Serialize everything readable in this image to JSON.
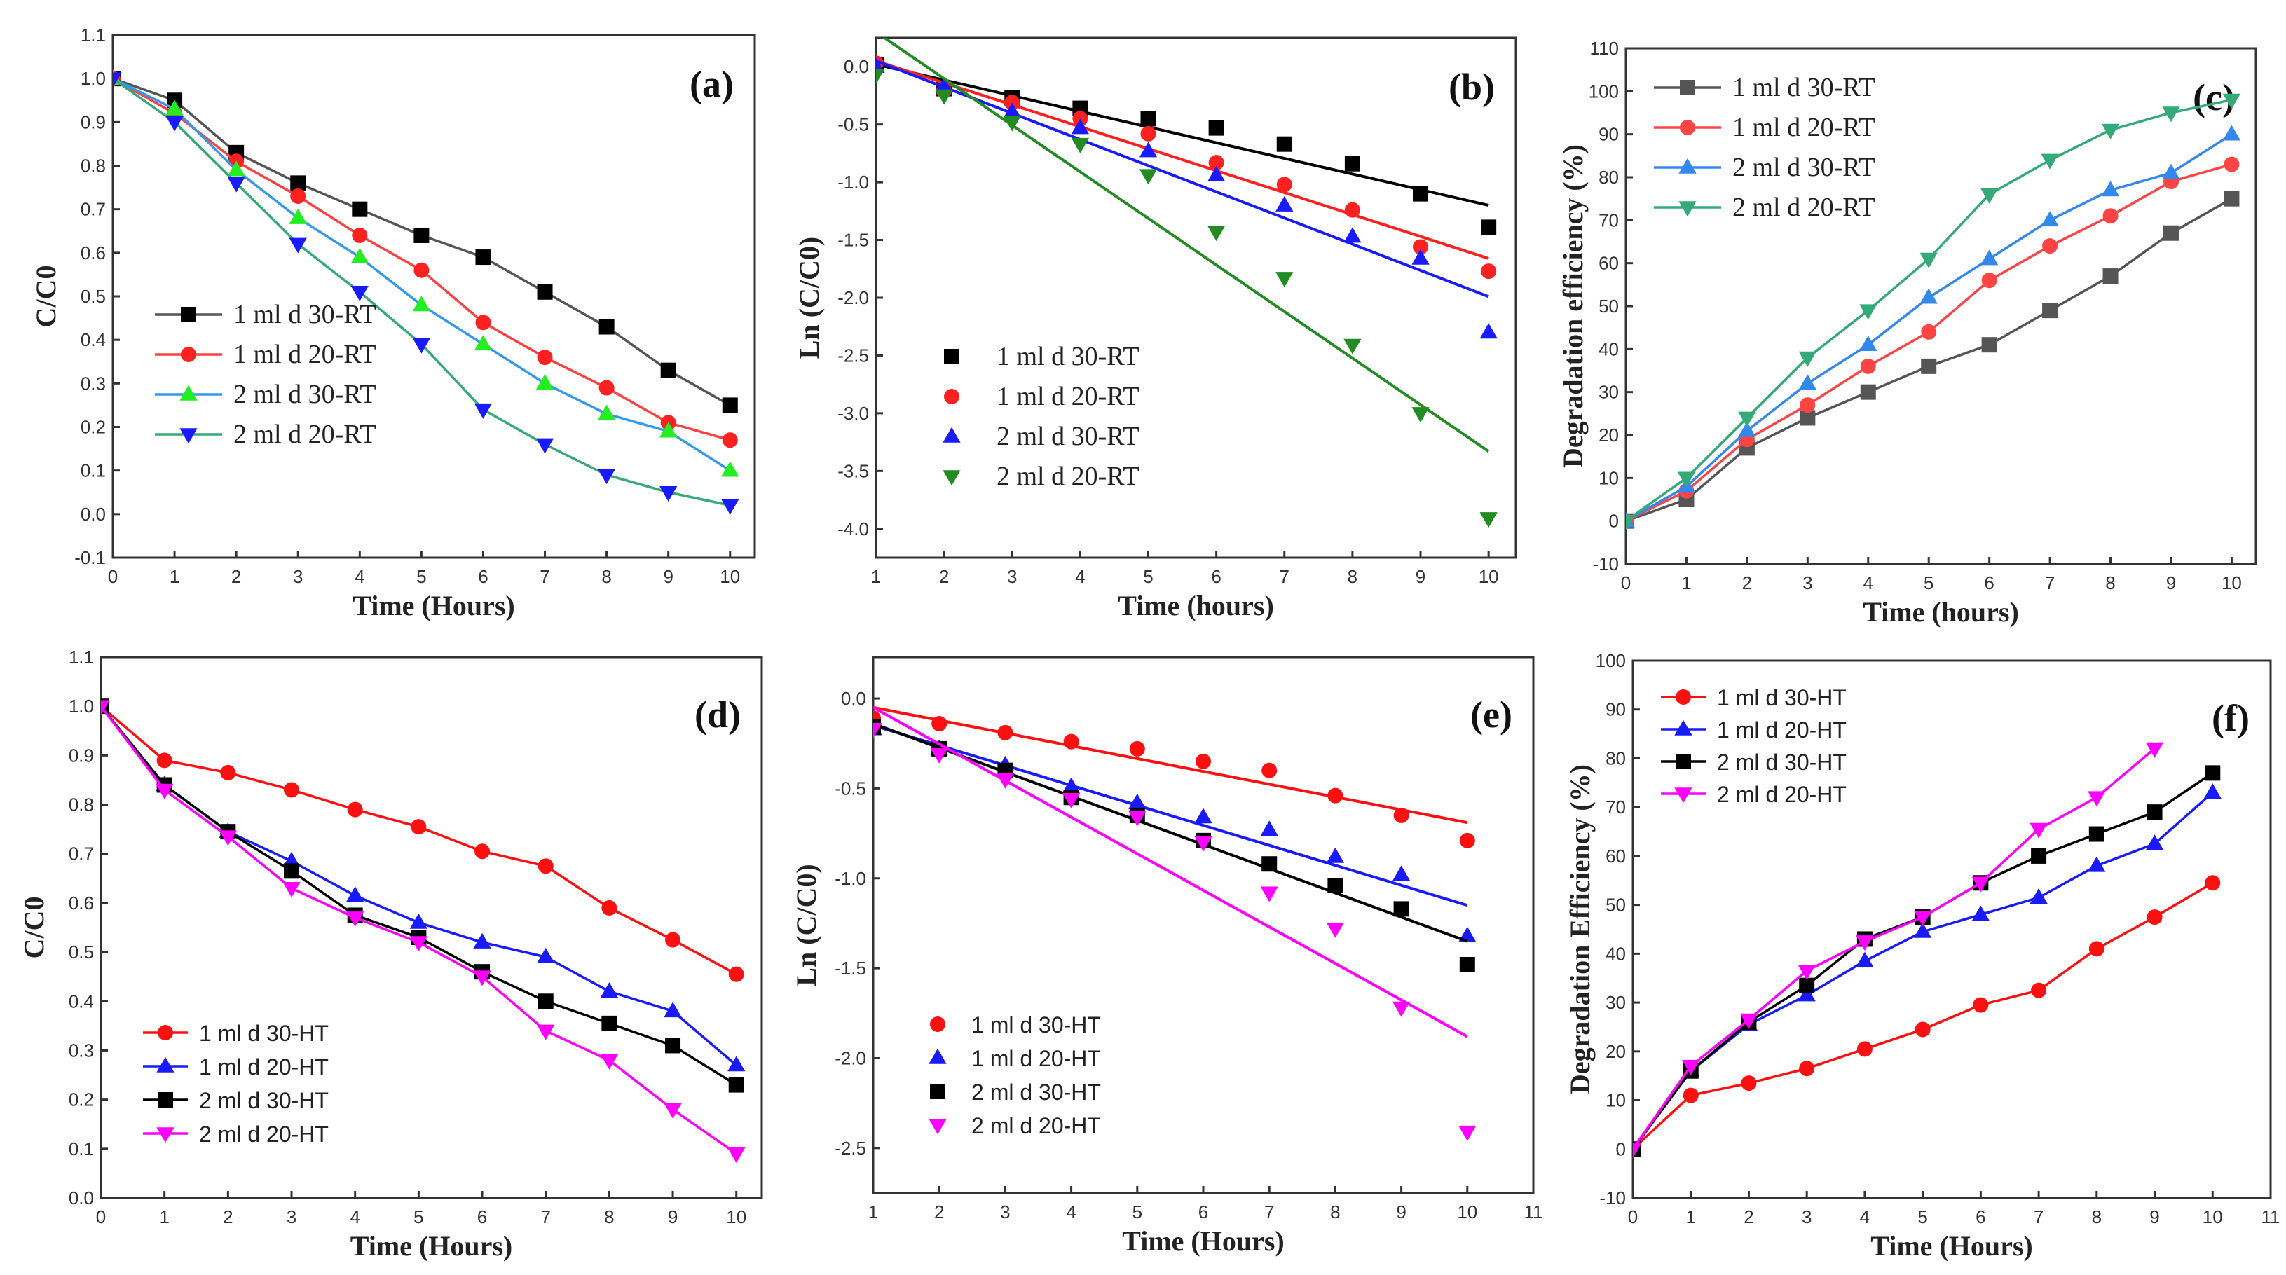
{
  "chart_data": [
    {
      "id": "a",
      "type": "line",
      "panel_label": "(a)",
      "xlabel": "Time (Hours)",
      "ylabel": "C/C0",
      "xlim": [
        0,
        10.4
      ],
      "ylim": [
        -0.1,
        1.1
      ],
      "xticks": [
        0,
        1,
        2,
        3,
        4,
        5,
        6,
        7,
        8,
        9,
        10
      ],
      "yticks": [
        -0.1,
        0.0,
        0.1,
        0.2,
        0.3,
        0.4,
        0.5,
        0.6,
        0.7,
        0.8,
        0.9,
        1.0,
        1.1
      ],
      "ydec": 1,
      "legend": "bottom-left",
      "x": [
        0,
        1,
        2,
        3,
        4,
        5,
        6,
        7,
        8,
        9,
        10
      ],
      "series": [
        {
          "name": "1 ml d 30-RT",
          "color": "#000000",
          "line": "#555555",
          "marker": "square",
          "values": [
            1,
            0.95,
            0.83,
            0.76,
            0.7,
            0.64,
            0.59,
            0.51,
            0.43,
            0.33,
            0.25
          ]
        },
        {
          "name": "1 ml d 20-RT",
          "color": "#ff2020",
          "line": "#ff4040",
          "marker": "circle",
          "values": [
            1,
            0.92,
            0.81,
            0.73,
            0.64,
            0.56,
            0.44,
            0.36,
            0.29,
            0.21,
            0.17
          ]
        },
        {
          "name": "2 ml d 30-RT",
          "color": "#22ee22",
          "line": "#3399ee",
          "marker": "triangle-up",
          "values": [
            1,
            0.93,
            0.79,
            0.68,
            0.59,
            0.48,
            0.39,
            0.3,
            0.23,
            0.19,
            0.1
          ]
        },
        {
          "name": "2 ml d 20-RT",
          "color": "#1a1aff",
          "line": "#33aa77",
          "marker": "triangle-down",
          "values": [
            1,
            0.9,
            0.76,
            0.62,
            0.51,
            0.39,
            0.24,
            0.16,
            0.09,
            0.05,
            0.02
          ]
        }
      ]
    },
    {
      "id": "b",
      "type": "scatter",
      "panel_label": "(b)",
      "xlabel": "Time (hours)",
      "ylabel": "Ln (C/C0)",
      "xlim": [
        1,
        10.4
      ],
      "ylim": [
        -4.25,
        0.25
      ],
      "xticks": [
        1,
        2,
        3,
        4,
        5,
        6,
        7,
        8,
        9,
        10
      ],
      "yticks": [
        0.0,
        -0.5,
        -1.0,
        -1.5,
        -2.0,
        -2.5,
        -3.0,
        -3.5,
        -4.0
      ],
      "ydec": 1,
      "legend": "bottom-left",
      "x": [
        1,
        2,
        3,
        4,
        5,
        6,
        7,
        8,
        9,
        10
      ],
      "series": [
        {
          "name": "1 ml d 30-RT",
          "color": "#000000",
          "line": "#000000",
          "marker": "square",
          "values": [
            0.02,
            -0.19,
            -0.27,
            -0.36,
            -0.45,
            -0.53,
            -0.67,
            -0.84,
            -1.1,
            -1.39
          ],
          "fit": [
            [
              1,
              0.02
            ],
            [
              10,
              -1.2
            ]
          ]
        },
        {
          "name": "1 ml d 20-RT",
          "color": "#ff2020",
          "line": "#ff2020",
          "marker": "circle",
          "values": [
            0.03,
            -0.21,
            -0.31,
            -0.45,
            -0.58,
            -0.83,
            -1.02,
            -1.24,
            -1.56,
            -1.77
          ],
          "fit": [
            [
              1,
              0.05
            ],
            [
              10,
              -1.66
            ]
          ]
        },
        {
          "name": "2 ml d 30-RT",
          "color": "#1a1aff",
          "line": "#1a1aff",
          "marker": "triangle-up",
          "values": [
            0.0,
            -0.17,
            -0.39,
            -0.53,
            -0.73,
            -0.94,
            -1.2,
            -1.47,
            -1.66,
            -2.3
          ],
          "fit": [
            [
              1,
              0.05
            ],
            [
              10,
              -1.99
            ]
          ]
        },
        {
          "name": "2 ml d 20-RT",
          "color": "#228b22",
          "line": "#228b22",
          "marker": "triangle-down",
          "values": [
            -0.07,
            -0.25,
            -0.48,
            -0.67,
            -0.94,
            -1.43,
            -1.83,
            -2.41,
            -3.0,
            -3.91
          ],
          "fit": [
            [
              1,
              0.3
            ],
            [
              10,
              -3.33
            ]
          ]
        }
      ]
    },
    {
      "id": "c",
      "type": "line",
      "panel_label": "(c)",
      "xlabel": "Time (hours)",
      "ylabel": "Degradation efficiency (%)",
      "xlim": [
        0,
        10.4
      ],
      "ylim": [
        -10,
        110
      ],
      "xticks": [
        0,
        1,
        2,
        3,
        4,
        5,
        6,
        7,
        8,
        9,
        10
      ],
      "yticks": [
        -10,
        0,
        10,
        20,
        30,
        40,
        50,
        60,
        70,
        80,
        90,
        100,
        110
      ],
      "ydec": 0,
      "legend": "top-left",
      "x": [
        0,
        1,
        2,
        3,
        4,
        5,
        6,
        7,
        8,
        9,
        10
      ],
      "series": [
        {
          "name": "1 ml d 30-RT",
          "color": "#555555",
          "line": "#555555",
          "marker": "square",
          "values": [
            0,
            5,
            17,
            24,
            30,
            36,
            41,
            49,
            57,
            67,
            75
          ]
        },
        {
          "name": "1 ml d 20-RT",
          "color": "#ff4444",
          "line": "#ff4444",
          "marker": "circle",
          "values": [
            0,
            7,
            19,
            27,
            36,
            44,
            56,
            64,
            71,
            79,
            83
          ]
        },
        {
          "name": "2 ml d 30-RT",
          "color": "#3388ee",
          "line": "#3388ee",
          "marker": "triangle-up",
          "values": [
            0,
            8,
            21,
            32,
            41,
            52,
            61,
            70,
            77,
            81,
            90
          ]
        },
        {
          "name": "2 ml d 20-RT",
          "color": "#33aa77",
          "line": "#33aa77",
          "marker": "triangle-down",
          "values": [
            0,
            10,
            24,
            38,
            49,
            61,
            76,
            84,
            91,
            95,
            98
          ]
        }
      ]
    },
    {
      "id": "d",
      "type": "line",
      "panel_label": "(d)",
      "xlabel": "Time (Hours)",
      "ylabel": "C/C0",
      "xlim": [
        0,
        10.4
      ],
      "ylim": [
        0,
        1.1
      ],
      "xticks": [
        0,
        1,
        2,
        3,
        4,
        5,
        6,
        7,
        8,
        9,
        10
      ],
      "yticks": [
        0.0,
        0.1,
        0.2,
        0.3,
        0.4,
        0.5,
        0.6,
        0.7,
        0.8,
        0.9,
        1.0,
        1.1
      ],
      "ydec": 1,
      "legend": "bottom-left",
      "x": [
        0,
        1,
        2,
        3,
        4,
        5,
        6,
        7,
        8,
        9,
        10
      ],
      "series": [
        {
          "name": "1 ml d 30-HT",
          "color": "#ff1010",
          "line": "#ff1010",
          "marker": "circle",
          "values": [
            1,
            0.89,
            0.865,
            0.83,
            0.79,
            0.755,
            0.705,
            0.675,
            0.59,
            0.525,
            0.455
          ]
        },
        {
          "name": "1 ml d 20-HT",
          "color": "#1a1aff",
          "line": "#1a1aff",
          "marker": "triangle-up",
          "values": [
            1,
            0.84,
            0.745,
            0.685,
            0.615,
            0.56,
            0.52,
            0.49,
            0.42,
            0.38,
            0.27
          ]
        },
        {
          "name": "2 ml d 30-HT",
          "color": "#000000",
          "line": "#000000",
          "marker": "square",
          "values": [
            1,
            0.84,
            0.745,
            0.665,
            0.575,
            0.53,
            0.46,
            0.4,
            0.355,
            0.31,
            0.23
          ]
        },
        {
          "name": "2 ml d 20-HT",
          "color": "#ff00ff",
          "line": "#ff00ff",
          "marker": "triangle-down",
          "values": [
            1,
            0.83,
            0.735,
            0.63,
            0.57,
            0.52,
            0.45,
            0.34,
            0.28,
            0.18,
            0.09
          ]
        }
      ]
    },
    {
      "id": "e",
      "type": "scatter",
      "panel_label": "(e)",
      "xlabel": "Time (Hours)",
      "ylabel": "Ln (C/C0)",
      "xlim": [
        1,
        11
      ],
      "ylim": [
        -2.75,
        0.23
      ],
      "xticks": [
        1,
        2,
        3,
        4,
        5,
        6,
        7,
        8,
        9,
        10,
        11
      ],
      "yticks": [
        0.0,
        -0.5,
        -1.0,
        -1.5,
        -2.0,
        -2.5
      ],
      "ydec": 1,
      "legend": "bottom-left",
      "x": [
        1,
        2,
        3,
        4,
        5,
        6,
        7,
        8,
        9,
        10
      ],
      "series": [
        {
          "name": "1 ml d 30-HT",
          "color": "#ff1010",
          "line": "#ff1010",
          "marker": "circle",
          "values": [
            -0.11,
            -0.14,
            -0.19,
            -0.24,
            -0.28,
            -0.35,
            -0.4,
            -0.54,
            -0.65,
            -0.79
          ],
          "fit": [
            [
              1,
              -0.05
            ],
            [
              10,
              -0.69
            ]
          ]
        },
        {
          "name": "1 ml d 20-HT",
          "color": "#1a1aff",
          "line": "#1a1aff",
          "marker": "triangle-up",
          "values": [
            -0.17,
            -0.28,
            -0.37,
            -0.49,
            -0.58,
            -0.66,
            -0.73,
            -0.88,
            -0.98,
            -1.32
          ],
          "fit": [
            [
              1,
              -0.15
            ],
            [
              10,
              -1.15
            ]
          ]
        },
        {
          "name": "2 ml d 30-HT",
          "color": "#000000",
          "line": "#000000",
          "marker": "square",
          "values": [
            -0.16,
            -0.28,
            -0.4,
            -0.55,
            -0.65,
            -0.79,
            -0.92,
            -1.04,
            -1.17,
            -1.48
          ],
          "fit": [
            [
              1,
              -0.14
            ],
            [
              10,
              -1.35
            ]
          ]
        },
        {
          "name": "2 ml d 20-HT",
          "color": "#ff00ff",
          "line": "#ff00ff",
          "marker": "triangle-down",
          "values": [
            -0.17,
            -0.31,
            -0.45,
            -0.56,
            -0.66,
            -0.8,
            -1.08,
            -1.28,
            -1.72,
            -2.41
          ],
          "fit": [
            [
              1,
              -0.05
            ],
            [
              10,
              -1.88
            ]
          ]
        }
      ]
    },
    {
      "id": "f",
      "type": "line",
      "panel_label": "(f)",
      "xlabel": "Time (Hours)",
      "ylabel": "Degradation Efficiency (%)",
      "xlim": [
        0,
        11
      ],
      "ylim": [
        -10,
        100
      ],
      "xticks": [
        0,
        1,
        2,
        3,
        4,
        5,
        6,
        7,
        8,
        9,
        10,
        11
      ],
      "yticks": [
        -10,
        0,
        10,
        20,
        30,
        40,
        50,
        60,
        70,
        80,
        90,
        100
      ],
      "ydec": 0,
      "legend": "top-left",
      "x": [
        0,
        1,
        2,
        3,
        4,
        5,
        6,
        7,
        8,
        9,
        10
      ],
      "series": [
        {
          "name": "1 ml d 30-HT",
          "color": "#ff1010",
          "line": "#ff1010",
          "marker": "circle",
          "values": [
            0,
            11,
            13.5,
            16.5,
            20.5,
            24.5,
            29.5,
            32.5,
            41,
            47.5,
            54.5
          ]
        },
        {
          "name": "1 ml d 20-HT",
          "color": "#1a1aff",
          "line": "#1a1aff",
          "marker": "triangle-up",
          "values": [
            0,
            16,
            25.5,
            31.5,
            38.5,
            44.5,
            48,
            51.5,
            58,
            62.5,
            73
          ]
        },
        {
          "name": "2 ml d 30-HT",
          "color": "#000000",
          "line": "#000000",
          "marker": "square",
          "values": [
            0,
            16,
            26,
            33.5,
            43,
            47.5,
            54.5,
            60,
            64.5,
            69,
            77
          ]
        },
        {
          "name": "2 ml d 20-HT",
          "color": "#ff00ff",
          "line": "#ff00ff",
          "marker": "triangle-down",
          "values": [
            0,
            17,
            26.5,
            36.5,
            42.5,
            47.5,
            54.5,
            65.5,
            72,
            82,
            null
          ]
        }
      ]
    }
  ]
}
